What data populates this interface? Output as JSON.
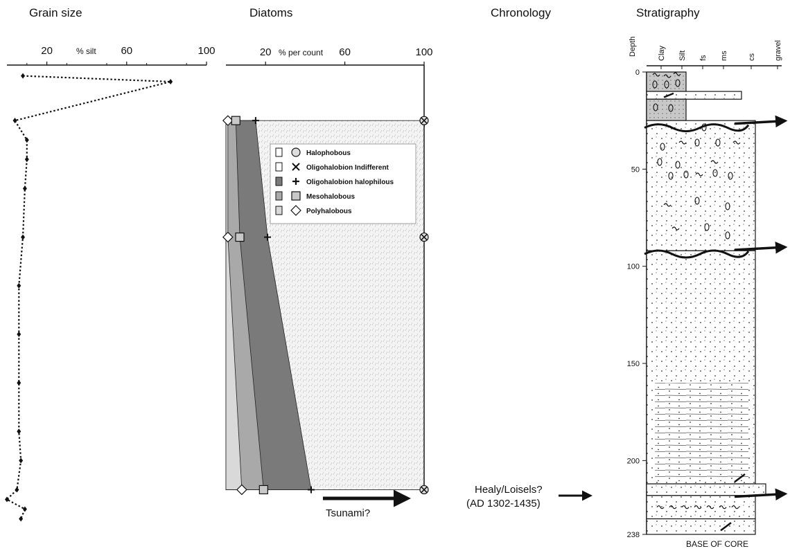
{
  "panels": {
    "grain_title": "Grain size",
    "diatoms_title": "Diatoms",
    "chronology_title": "Chronology",
    "stratigraphy_title": "Stratigraphy"
  },
  "chart_data": [
    {
      "type": "line",
      "title": "Grain size",
      "xlabel": "% silt",
      "xticks": [
        20,
        60,
        100
      ],
      "xlim": [
        0,
        100
      ],
      "depth_range": [
        0,
        238
      ],
      "series": [
        {
          "x": [
            8,
            82,
            4,
            10,
            10,
            9,
            8,
            6,
            6,
            6,
            6,
            7,
            5,
            0,
            9,
            7
          ],
          "depth": [
            2,
            5,
            25,
            35,
            45,
            60,
            85,
            110,
            135,
            160,
            185,
            200,
            215,
            220,
            225,
            230
          ]
        }
      ]
    },
    {
      "type": "area",
      "title": "Diatoms",
      "xlabel": "% per count",
      "xticks": [
        20,
        60,
        100
      ],
      "xlim": [
        0,
        100
      ],
      "depth_range": [
        0,
        238
      ],
      "legend": [
        {
          "label": "Halophobous",
          "symbol": "circle-icon",
          "fill": "#ffffff"
        },
        {
          "label": "Oligohalobion Indifferent",
          "symbol": "x-icon",
          "fill": "#ffffff"
        },
        {
          "label": "Oligohalobion halophilous",
          "symbol": "plus-icon",
          "fill": "#7a7a7a"
        },
        {
          "label": "Mesohalobous",
          "symbol": "square-icon",
          "fill": "#a9a9a9"
        },
        {
          "label": "Polyhalobous",
          "symbol": "diamond-icon",
          "fill": "#d9d9d9"
        }
      ],
      "samples": [
        {
          "depth": 25,
          "cumulative": [
            1,
            5,
            15,
            100,
            100
          ]
        },
        {
          "depth": 85,
          "cumulative": [
            1,
            7,
            21,
            100,
            100
          ]
        },
        {
          "depth": 215,
          "cumulative": [
            8,
            19,
            43,
            100,
            100
          ]
        }
      ],
      "annotation": "Tsunami?"
    },
    {
      "type": "table",
      "title": "Stratigraphy",
      "depth_label": "Depth",
      "grain_classes": [
        "Clay",
        "Silt",
        "fs",
        "ms",
        "cs",
        "gravel"
      ],
      "depth_ticks": [
        0,
        50,
        100,
        150,
        200,
        238
      ],
      "base_label": "BASE OF CORE",
      "units": [
        {
          "top": 0,
          "bottom": 10,
          "grain": "silt",
          "pattern": "rooted-clay"
        },
        {
          "top": 10,
          "bottom": 14,
          "grain": "coarse",
          "pattern": "sand"
        },
        {
          "top": 14,
          "bottom": 25,
          "grain": "silt",
          "pattern": "shell-mud"
        },
        {
          "top": 25,
          "bottom": 92,
          "grain": "ms-cs",
          "pattern": "pebbly-sand"
        },
        {
          "top": 92,
          "bottom": 212,
          "grain": "ms-cs",
          "pattern": "laminated-sand"
        },
        {
          "top": 212,
          "bottom": 218,
          "grain": "coarse",
          "pattern": "sand"
        },
        {
          "top": 218,
          "bottom": 230,
          "grain": "ms-cs",
          "pattern": "rooted"
        },
        {
          "top": 230,
          "bottom": 238,
          "grain": "ms-cs",
          "pattern": "sand"
        }
      ],
      "event_depths": [
        28,
        93,
        220
      ]
    }
  ],
  "chronology": {
    "label_line1": "Healy/Loisels?",
    "label_line2": "(AD 1302-1435)",
    "depth": 215
  }
}
